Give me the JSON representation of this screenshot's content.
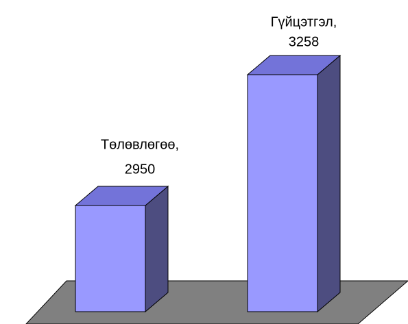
{
  "chart_data": {
    "type": "bar3d",
    "categories": [
      "Төлөвлөгөө,",
      "Гүйцэтгэл,"
    ],
    "values": [
      2950,
      3258
    ],
    "color": "#9999ff",
    "ylim": [
      2700,
      3300
    ]
  }
}
